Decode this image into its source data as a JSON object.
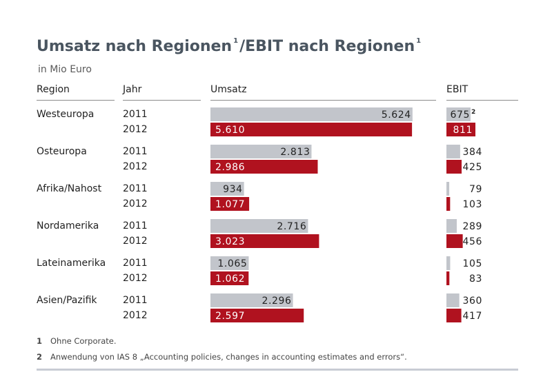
{
  "chart_data": {
    "type": "bar",
    "title": "Umsatz nach Regionen",
    "title_sup1": "1",
    "title_mid": "/EBIT nach Regionen",
    "title_sup2": "1",
    "subtitle": "in Mio Euro",
    "headers": {
      "region": "Region",
      "year": "Jahr",
      "umsatz": "Umsatz",
      "ebit": "EBIT"
    },
    "colors": {
      "y2011": "#c2c5cb",
      "y2012": "#b0121f",
      "title": "#4a5560"
    },
    "umsatz_max": 5800,
    "ebit_max": 811,
    "rows": [
      {
        "region": "Westeuropa",
        "entries": [
          {
            "year": "2011",
            "umsatz": 5624,
            "umsatz_label": "5.624",
            "ebit": 675,
            "ebit_label": "675",
            "ebit_note": "2"
          },
          {
            "year": "2012",
            "umsatz": 5610,
            "umsatz_label": "5.610",
            "ebit": 811,
            "ebit_label": "811",
            "ebit_note": ""
          }
        ]
      },
      {
        "region": "Osteuropa",
        "entries": [
          {
            "year": "2011",
            "umsatz": 2813,
            "umsatz_label": "2.813",
            "ebit": 384,
            "ebit_label": "384",
            "ebit_note": ""
          },
          {
            "year": "2012",
            "umsatz": 2986,
            "umsatz_label": "2.986",
            "ebit": 425,
            "ebit_label": "425",
            "ebit_note": ""
          }
        ]
      },
      {
        "region": "Afrika/Nahost",
        "entries": [
          {
            "year": "2011",
            "umsatz": 934,
            "umsatz_label": "934",
            "ebit": 79,
            "ebit_label": "79",
            "ebit_note": ""
          },
          {
            "year": "2012",
            "umsatz": 1077,
            "umsatz_label": "1.077",
            "ebit": 103,
            "ebit_label": "103",
            "ebit_note": ""
          }
        ]
      },
      {
        "region": "Nordamerika",
        "entries": [
          {
            "year": "2011",
            "umsatz": 2716,
            "umsatz_label": "2.716",
            "ebit": 289,
            "ebit_label": "289",
            "ebit_note": ""
          },
          {
            "year": "2012",
            "umsatz": 3023,
            "umsatz_label": "3.023",
            "ebit": 456,
            "ebit_label": "456",
            "ebit_note": ""
          }
        ]
      },
      {
        "region": "Lateinamerika",
        "entries": [
          {
            "year": "2011",
            "umsatz": 1065,
            "umsatz_label": "1.065",
            "ebit": 105,
            "ebit_label": "105",
            "ebit_note": ""
          },
          {
            "year": "2012",
            "umsatz": 1062,
            "umsatz_label": "1.062",
            "ebit": 83,
            "ebit_label": "83",
            "ebit_note": ""
          }
        ]
      },
      {
        "region": "Asien/Pazifik",
        "entries": [
          {
            "year": "2011",
            "umsatz": 2296,
            "umsatz_label": "2.296",
            "ebit": 360,
            "ebit_label": "360",
            "ebit_note": ""
          },
          {
            "year": "2012",
            "umsatz": 2597,
            "umsatz_label": "2.597",
            "ebit": 417,
            "ebit_label": "417",
            "ebit_note": ""
          }
        ]
      }
    ]
  },
  "footnotes": [
    {
      "marker": "1",
      "text": "Ohne Corporate."
    },
    {
      "marker": "2",
      "text": "Anwendung von IAS 8 „Accounting policies, changes in accounting estimates and errors“."
    }
  ]
}
